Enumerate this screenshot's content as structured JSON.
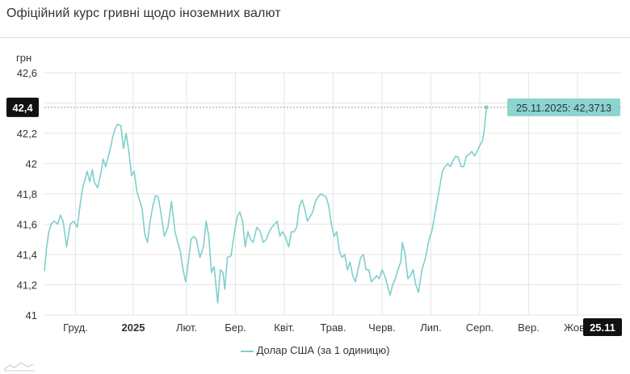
{
  "title": "Офіційний курс гривні щодо іноземних валют",
  "colors": {
    "series": "#7fcfcb",
    "tooltip_bg": "#8dd3cf",
    "marker_bg": "#111111",
    "grid": "#e6e6e6",
    "axis_text": "#333333"
  },
  "legend": {
    "label": "Долар США (за 1 одиницю)"
  },
  "icons": {
    "corner": "chart-line-icon"
  },
  "chart_data": {
    "type": "line",
    "title": "Офіційний курс гривні щодо іноземних валют",
    "ylabel": "грн",
    "xlabel": "",
    "ylim": [
      41,
      42.6
    ],
    "yticks": [
      "41",
      "41,2",
      "41,4",
      "41,6",
      "41,8",
      "42",
      "42,2",
      "42,4",
      "42,6"
    ],
    "yticks_values": [
      41,
      41.2,
      41.4,
      41.6,
      41.8,
      42,
      42.2,
      42.4,
      42.6
    ],
    "xticks": [
      "Груд.",
      "2025",
      "Лют.",
      "Бер.",
      "Квіт.",
      "Трав.",
      "Черв.",
      "Лип.",
      "Серп.",
      "Вер.",
      "Жовт."
    ],
    "xticks_positions": [
      0.7,
      2.0,
      3.2,
      4.3,
      5.4,
      6.5,
      7.6,
      8.7,
      9.8,
      10.9,
      12.0
    ],
    "x_range": [
      0,
      13.0
    ],
    "grid": true,
    "legend_position": "bottom",
    "highlight": {
      "date_label": "25.11",
      "tooltip": "25.11.2025: 42,3713",
      "value": 42.3713,
      "axis_value_label": "42,4"
    },
    "series": [
      {
        "name": "Долар США (за 1 одиницю)",
        "points": [
          [
            0,
            41.29
          ],
          [
            0.05,
            41.45
          ],
          [
            0.1,
            41.55
          ],
          [
            0.15,
            41.6
          ],
          [
            0.22,
            41.62
          ],
          [
            0.3,
            41.6
          ],
          [
            0.36,
            41.66
          ],
          [
            0.42,
            41.62
          ],
          [
            0.5,
            41.45
          ],
          [
            0.58,
            41.6
          ],
          [
            0.66,
            41.62
          ],
          [
            0.74,
            41.58
          ],
          [
            0.8,
            41.72
          ],
          [
            0.86,
            41.84
          ],
          [
            0.92,
            41.9
          ],
          [
            0.96,
            41.95
          ],
          [
            1.02,
            41.88
          ],
          [
            1.08,
            41.96
          ],
          [
            1.12,
            41.88
          ],
          [
            1.2,
            41.84
          ],
          [
            1.28,
            41.95
          ],
          [
            1.32,
            42.03
          ],
          [
            1.38,
            41.98
          ],
          [
            1.44,
            42.05
          ],
          [
            1.5,
            42.12
          ],
          [
            1.54,
            42.18
          ],
          [
            1.58,
            42.22
          ],
          [
            1.64,
            42.26
          ],
          [
            1.72,
            42.25
          ],
          [
            1.78,
            42.1
          ],
          [
            1.84,
            42.2
          ],
          [
            1.9,
            42.08
          ],
          [
            1.96,
            41.92
          ],
          [
            2.02,
            41.95
          ],
          [
            2.08,
            41.82
          ],
          [
            2.14,
            41.76
          ],
          [
            2.2,
            41.7
          ],
          [
            2.26,
            41.53
          ],
          [
            2.32,
            41.48
          ],
          [
            2.38,
            41.62
          ],
          [
            2.44,
            41.72
          ],
          [
            2.5,
            41.79
          ],
          [
            2.56,
            41.78
          ],
          [
            2.62,
            41.68
          ],
          [
            2.7,
            41.52
          ],
          [
            2.78,
            41.58
          ],
          [
            2.86,
            41.75
          ],
          [
            2.94,
            41.55
          ],
          [
            3.0,
            41.48
          ],
          [
            3.06,
            41.42
          ],
          [
            3.12,
            41.3
          ],
          [
            3.18,
            41.22
          ],
          [
            3.24,
            41.35
          ],
          [
            3.3,
            41.5
          ],
          [
            3.36,
            41.52
          ],
          [
            3.42,
            41.5
          ],
          [
            3.5,
            41.38
          ],
          [
            3.58,
            41.45
          ],
          [
            3.64,
            41.62
          ],
          [
            3.7,
            41.52
          ],
          [
            3.76,
            41.28
          ],
          [
            3.82,
            41.32
          ],
          [
            3.86,
            41.2
          ],
          [
            3.9,
            41.08
          ],
          [
            3.96,
            41.3
          ],
          [
            4.02,
            41.28
          ],
          [
            4.06,
            41.17
          ],
          [
            4.12,
            41.38
          ],
          [
            4.2,
            41.39
          ],
          [
            4.28,
            41.55
          ],
          [
            4.34,
            41.65
          ],
          [
            4.4,
            41.68
          ],
          [
            4.46,
            41.62
          ],
          [
            4.52,
            41.45
          ],
          [
            4.58,
            41.55
          ],
          [
            4.64,
            41.5
          ],
          [
            4.7,
            41.48
          ],
          [
            4.78,
            41.58
          ],
          [
            4.86,
            41.55
          ],
          [
            4.92,
            41.48
          ],
          [
            5.0,
            41.5
          ],
          [
            5.06,
            41.55
          ],
          [
            5.12,
            41.58
          ],
          [
            5.18,
            41.6
          ],
          [
            5.24,
            41.62
          ],
          [
            5.3,
            41.52
          ],
          [
            5.36,
            41.55
          ],
          [
            5.42,
            41.52
          ],
          [
            5.5,
            41.45
          ],
          [
            5.56,
            41.55
          ],
          [
            5.62,
            41.55
          ],
          [
            5.68,
            41.58
          ],
          [
            5.74,
            41.72
          ],
          [
            5.8,
            41.76
          ],
          [
            5.86,
            41.7
          ],
          [
            5.92,
            41.62
          ],
          [
            5.98,
            41.65
          ],
          [
            6.04,
            41.68
          ],
          [
            6.1,
            41.75
          ],
          [
            6.16,
            41.78
          ],
          [
            6.22,
            41.8
          ],
          [
            6.28,
            41.79
          ],
          [
            6.34,
            41.78
          ],
          [
            6.4,
            41.72
          ],
          [
            6.46,
            41.6
          ],
          [
            6.52,
            41.52
          ],
          [
            6.58,
            41.55
          ],
          [
            6.64,
            41.42
          ],
          [
            6.7,
            41.38
          ],
          [
            6.76,
            41.4
          ],
          [
            6.82,
            41.3
          ],
          [
            6.88,
            41.35
          ],
          [
            6.94,
            41.26
          ],
          [
            7.0,
            41.22
          ],
          [
            7.06,
            41.3
          ],
          [
            7.12,
            41.38
          ],
          [
            7.18,
            41.4
          ],
          [
            7.24,
            41.3
          ],
          [
            7.3,
            41.3
          ],
          [
            7.36,
            41.22
          ],
          [
            7.42,
            41.24
          ],
          [
            7.48,
            41.26
          ],
          [
            7.54,
            41.24
          ],
          [
            7.6,
            41.3
          ],
          [
            7.66,
            41.26
          ],
          [
            7.72,
            41.2
          ],
          [
            7.78,
            41.13
          ],
          [
            7.84,
            41.2
          ],
          [
            7.9,
            41.24
          ],
          [
            7.96,
            41.3
          ],
          [
            8.02,
            41.35
          ],
          [
            8.06,
            41.48
          ],
          [
            8.12,
            41.4
          ],
          [
            8.18,
            41.24
          ],
          [
            8.24,
            41.26
          ],
          [
            8.3,
            41.3
          ],
          [
            8.36,
            41.2
          ],
          [
            8.42,
            41.15
          ],
          [
            8.5,
            41.3
          ],
          [
            8.58,
            41.38
          ],
          [
            8.66,
            41.5
          ],
          [
            8.72,
            41.55
          ],
          [
            8.78,
            41.65
          ],
          [
            8.84,
            41.75
          ],
          [
            8.9,
            41.85
          ],
          [
            8.96,
            41.95
          ],
          [
            9.02,
            41.98
          ],
          [
            9.08,
            42.0
          ],
          [
            9.14,
            41.98
          ],
          [
            9.2,
            42.02
          ],
          [
            9.26,
            42.05
          ],
          [
            9.32,
            42.04
          ],
          [
            9.38,
            41.98
          ],
          [
            9.44,
            41.98
          ],
          [
            9.5,
            42.05
          ],
          [
            9.56,
            42.06
          ],
          [
            9.62,
            42.08
          ],
          [
            9.68,
            42.05
          ],
          [
            9.74,
            42.08
          ],
          [
            9.8,
            42.12
          ],
          [
            9.86,
            42.15
          ],
          [
            9.9,
            42.22
          ],
          [
            9.95,
            42.37
          ]
        ]
      }
    ]
  }
}
